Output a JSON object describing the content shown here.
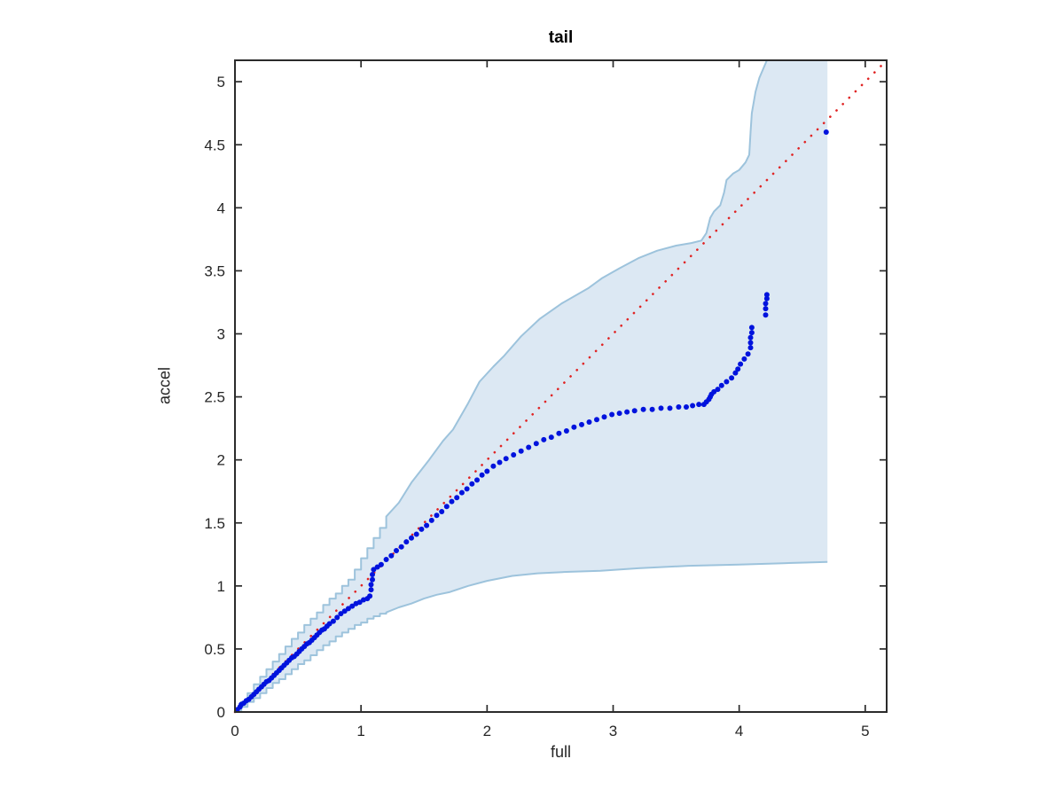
{
  "chart_data": {
    "type": "scatter",
    "subtype": "qq-plot-with-confidence-band",
    "title": "tail",
    "xlabel": "full",
    "ylabel": "accel",
    "xlim": [
      0,
      5.17
    ],
    "ylim": [
      0,
      5.17
    ],
    "grid": false,
    "legend": "none",
    "x_ticks": [
      0,
      1,
      2,
      3,
      4,
      5
    ],
    "x_tick_labels": [
      "0",
      "1",
      "2",
      "3",
      "4",
      "5"
    ],
    "y_ticks": [
      0,
      0.5,
      1,
      1.5,
      2,
      2.5,
      3,
      3.5,
      4,
      4.5,
      5
    ],
    "y_tick_labels": [
      "0",
      "0.5",
      "1",
      "1.5",
      "2",
      "2.5",
      "3",
      "3.5",
      "4",
      "4.5",
      "5"
    ],
    "colors": {
      "point": "#0013dd",
      "reference_line": "#e02424",
      "band_fill": "#dce8f3",
      "band_edge": "#9dc3dc",
      "axis": "#2b2b2b"
    },
    "reference_line": {
      "style": "dotted",
      "from": [
        0,
        0
      ],
      "to": [
        5.17,
        5.17
      ]
    },
    "band": {
      "step_until": 1.25,
      "right_x": 4.7,
      "upper": [
        [
          0,
          0
        ],
        [
          0.05,
          0.08
        ],
        [
          0.1,
          0.15
        ],
        [
          0.15,
          0.22
        ],
        [
          0.2,
          0.28
        ],
        [
          0.25,
          0.34
        ],
        [
          0.3,
          0.4
        ],
        [
          0.35,
          0.46
        ],
        [
          0.4,
          0.52
        ],
        [
          0.45,
          0.58
        ],
        [
          0.5,
          0.63
        ],
        [
          0.55,
          0.69
        ],
        [
          0.6,
          0.74
        ],
        [
          0.65,
          0.79
        ],
        [
          0.7,
          0.85
        ],
        [
          0.75,
          0.9
        ],
        [
          0.8,
          0.94
        ],
        [
          0.85,
          1.0
        ],
        [
          0.9,
          1.05
        ],
        [
          0.95,
          1.13
        ],
        [
          1.0,
          1.22
        ],
        [
          1.05,
          1.3
        ],
        [
          1.1,
          1.38
        ],
        [
          1.15,
          1.46
        ],
        [
          1.2,
          1.55
        ],
        [
          1.3,
          1.66
        ],
        [
          1.4,
          1.82
        ],
        [
          1.54,
          2.0
        ],
        [
          1.65,
          2.15
        ],
        [
          1.73,
          2.24
        ],
        [
          1.85,
          2.45
        ],
        [
          1.94,
          2.62
        ],
        [
          2.05,
          2.74
        ],
        [
          2.13,
          2.82
        ],
        [
          2.27,
          2.98
        ],
        [
          2.42,
          3.12
        ],
        [
          2.59,
          3.24
        ],
        [
          2.8,
          3.36
        ],
        [
          2.91,
          3.44
        ],
        [
          3.05,
          3.52
        ],
        [
          3.2,
          3.6
        ],
        [
          3.35,
          3.66
        ],
        [
          3.5,
          3.7
        ],
        [
          3.62,
          3.72
        ],
        [
          3.7,
          3.74
        ],
        [
          3.74,
          3.8
        ],
        [
          3.77,
          3.92
        ],
        [
          3.8,
          3.97
        ],
        [
          3.85,
          4.02
        ],
        [
          3.88,
          4.12
        ],
        [
          3.9,
          4.22
        ],
        [
          3.95,
          4.27
        ],
        [
          4.0,
          4.3
        ],
        [
          4.05,
          4.36
        ],
        [
          4.08,
          4.42
        ],
        [
          4.09,
          4.6
        ],
        [
          4.1,
          4.75
        ],
        [
          4.13,
          4.92
        ],
        [
          4.16,
          5.03
        ],
        [
          4.22,
          5.17
        ]
      ],
      "lower": [
        [
          0,
          0
        ],
        [
          0.05,
          0.04
        ],
        [
          0.1,
          0.08
        ],
        [
          0.15,
          0.11
        ],
        [
          0.2,
          0.15
        ],
        [
          0.25,
          0.19
        ],
        [
          0.3,
          0.23
        ],
        [
          0.35,
          0.26
        ],
        [
          0.4,
          0.3
        ],
        [
          0.45,
          0.34
        ],
        [
          0.5,
          0.38
        ],
        [
          0.55,
          0.41
        ],
        [
          0.6,
          0.45
        ],
        [
          0.65,
          0.49
        ],
        [
          0.7,
          0.53
        ],
        [
          0.75,
          0.56
        ],
        [
          0.8,
          0.6
        ],
        [
          0.85,
          0.63
        ],
        [
          0.9,
          0.66
        ],
        [
          0.95,
          0.69
        ],
        [
          1.0,
          0.71
        ],
        [
          1.05,
          0.74
        ],
        [
          1.1,
          0.76
        ],
        [
          1.15,
          0.78
        ],
        [
          1.2,
          0.79
        ],
        [
          1.3,
          0.83
        ],
        [
          1.4,
          0.86
        ],
        [
          1.5,
          0.9
        ],
        [
          1.6,
          0.93
        ],
        [
          1.7,
          0.95
        ],
        [
          1.85,
          1.0
        ],
        [
          2.0,
          1.04
        ],
        [
          2.2,
          1.08
        ],
        [
          2.4,
          1.1
        ],
        [
          2.6,
          1.11
        ],
        [
          2.9,
          1.12
        ],
        [
          3.2,
          1.14
        ],
        [
          3.6,
          1.16
        ],
        [
          4.0,
          1.17
        ],
        [
          4.35,
          1.18
        ],
        [
          4.7,
          1.19
        ]
      ]
    },
    "points": [
      [
        0.02,
        0.02
      ],
      [
        0.04,
        0.04
      ],
      [
        0.05,
        0.06
      ],
      [
        0.07,
        0.07
      ],
      [
        0.09,
        0.09
      ],
      [
        0.11,
        0.1
      ],
      [
        0.13,
        0.12
      ],
      [
        0.15,
        0.14
      ],
      [
        0.17,
        0.16
      ],
      [
        0.19,
        0.18
      ],
      [
        0.21,
        0.2
      ],
      [
        0.23,
        0.22
      ],
      [
        0.25,
        0.24
      ],
      [
        0.27,
        0.25
      ],
      [
        0.29,
        0.27
      ],
      [
        0.31,
        0.29
      ],
      [
        0.33,
        0.31
      ],
      [
        0.35,
        0.33
      ],
      [
        0.37,
        0.35
      ],
      [
        0.39,
        0.37
      ],
      [
        0.41,
        0.39
      ],
      [
        0.43,
        0.41
      ],
      [
        0.45,
        0.43
      ],
      [
        0.47,
        0.44
      ],
      [
        0.49,
        0.46
      ],
      [
        0.51,
        0.48
      ],
      [
        0.53,
        0.5
      ],
      [
        0.55,
        0.52
      ],
      [
        0.57,
        0.54
      ],
      [
        0.59,
        0.55
      ],
      [
        0.61,
        0.57
      ],
      [
        0.63,
        0.59
      ],
      [
        0.65,
        0.61
      ],
      [
        0.67,
        0.63
      ],
      [
        0.69,
        0.65
      ],
      [
        0.71,
        0.66
      ],
      [
        0.73,
        0.68
      ],
      [
        0.75,
        0.7
      ],
      [
        0.78,
        0.72
      ],
      [
        0.81,
        0.75
      ],
      [
        0.84,
        0.78
      ],
      [
        0.87,
        0.8
      ],
      [
        0.9,
        0.82
      ],
      [
        0.93,
        0.84
      ],
      [
        0.96,
        0.86
      ],
      [
        0.99,
        0.87
      ],
      [
        1.02,
        0.89
      ],
      [
        1.05,
        0.9
      ],
      [
        1.07,
        0.92
      ],
      [
        1.08,
        0.97
      ],
      [
        1.08,
        1.01
      ],
      [
        1.09,
        1.05
      ],
      [
        1.09,
        1.09
      ],
      [
        1.1,
        1.13
      ],
      [
        1.13,
        1.15
      ],
      [
        1.16,
        1.17
      ],
      [
        1.2,
        1.21
      ],
      [
        1.24,
        1.24
      ],
      [
        1.28,
        1.28
      ],
      [
        1.32,
        1.31
      ],
      [
        1.36,
        1.35
      ],
      [
        1.4,
        1.38
      ],
      [
        1.44,
        1.41
      ],
      [
        1.48,
        1.45
      ],
      [
        1.52,
        1.48
      ],
      [
        1.56,
        1.52
      ],
      [
        1.6,
        1.56
      ],
      [
        1.64,
        1.59
      ],
      [
        1.68,
        1.63
      ],
      [
        1.72,
        1.67
      ],
      [
        1.76,
        1.7
      ],
      [
        1.8,
        1.74
      ],
      [
        1.84,
        1.77
      ],
      [
        1.88,
        1.81
      ],
      [
        1.92,
        1.84
      ],
      [
        1.96,
        1.88
      ],
      [
        2.0,
        1.91
      ],
      [
        2.05,
        1.95
      ],
      [
        2.1,
        1.98
      ],
      [
        2.15,
        2.01
      ],
      [
        2.21,
        2.04
      ],
      [
        2.27,
        2.07
      ],
      [
        2.33,
        2.1
      ],
      [
        2.39,
        2.13
      ],
      [
        2.45,
        2.16
      ],
      [
        2.51,
        2.18
      ],
      [
        2.57,
        2.21
      ],
      [
        2.63,
        2.23
      ],
      [
        2.69,
        2.26
      ],
      [
        2.75,
        2.28
      ],
      [
        2.81,
        2.3
      ],
      [
        2.87,
        2.32
      ],
      [
        2.93,
        2.34
      ],
      [
        2.99,
        2.36
      ],
      [
        3.05,
        2.37
      ],
      [
        3.11,
        2.38
      ],
      [
        3.17,
        2.39
      ],
      [
        3.24,
        2.4
      ],
      [
        3.31,
        2.4
      ],
      [
        3.38,
        2.41
      ],
      [
        3.45,
        2.41
      ],
      [
        3.52,
        2.42
      ],
      [
        3.58,
        2.42
      ],
      [
        3.63,
        2.43
      ],
      [
        3.68,
        2.44
      ],
      [
        3.72,
        2.44
      ],
      [
        3.74,
        2.46
      ],
      [
        3.76,
        2.48
      ],
      [
        3.77,
        2.5
      ],
      [
        3.78,
        2.52
      ],
      [
        3.8,
        2.54
      ],
      [
        3.83,
        2.56
      ],
      [
        3.86,
        2.59
      ],
      [
        3.9,
        2.62
      ],
      [
        3.94,
        2.65
      ],
      [
        3.97,
        2.69
      ],
      [
        3.99,
        2.72
      ],
      [
        4.01,
        2.76
      ],
      [
        4.04,
        2.8
      ],
      [
        4.07,
        2.84
      ],
      [
        4.09,
        2.89
      ],
      [
        4.09,
        2.93
      ],
      [
        4.09,
        2.97
      ],
      [
        4.1,
        3.01
      ],
      [
        4.1,
        3.05
      ],
      [
        4.21,
        3.15
      ],
      [
        4.21,
        3.2
      ],
      [
        4.21,
        3.24
      ],
      [
        4.22,
        3.28
      ],
      [
        4.22,
        3.31
      ],
      [
        4.69,
        4.6
      ]
    ]
  }
}
